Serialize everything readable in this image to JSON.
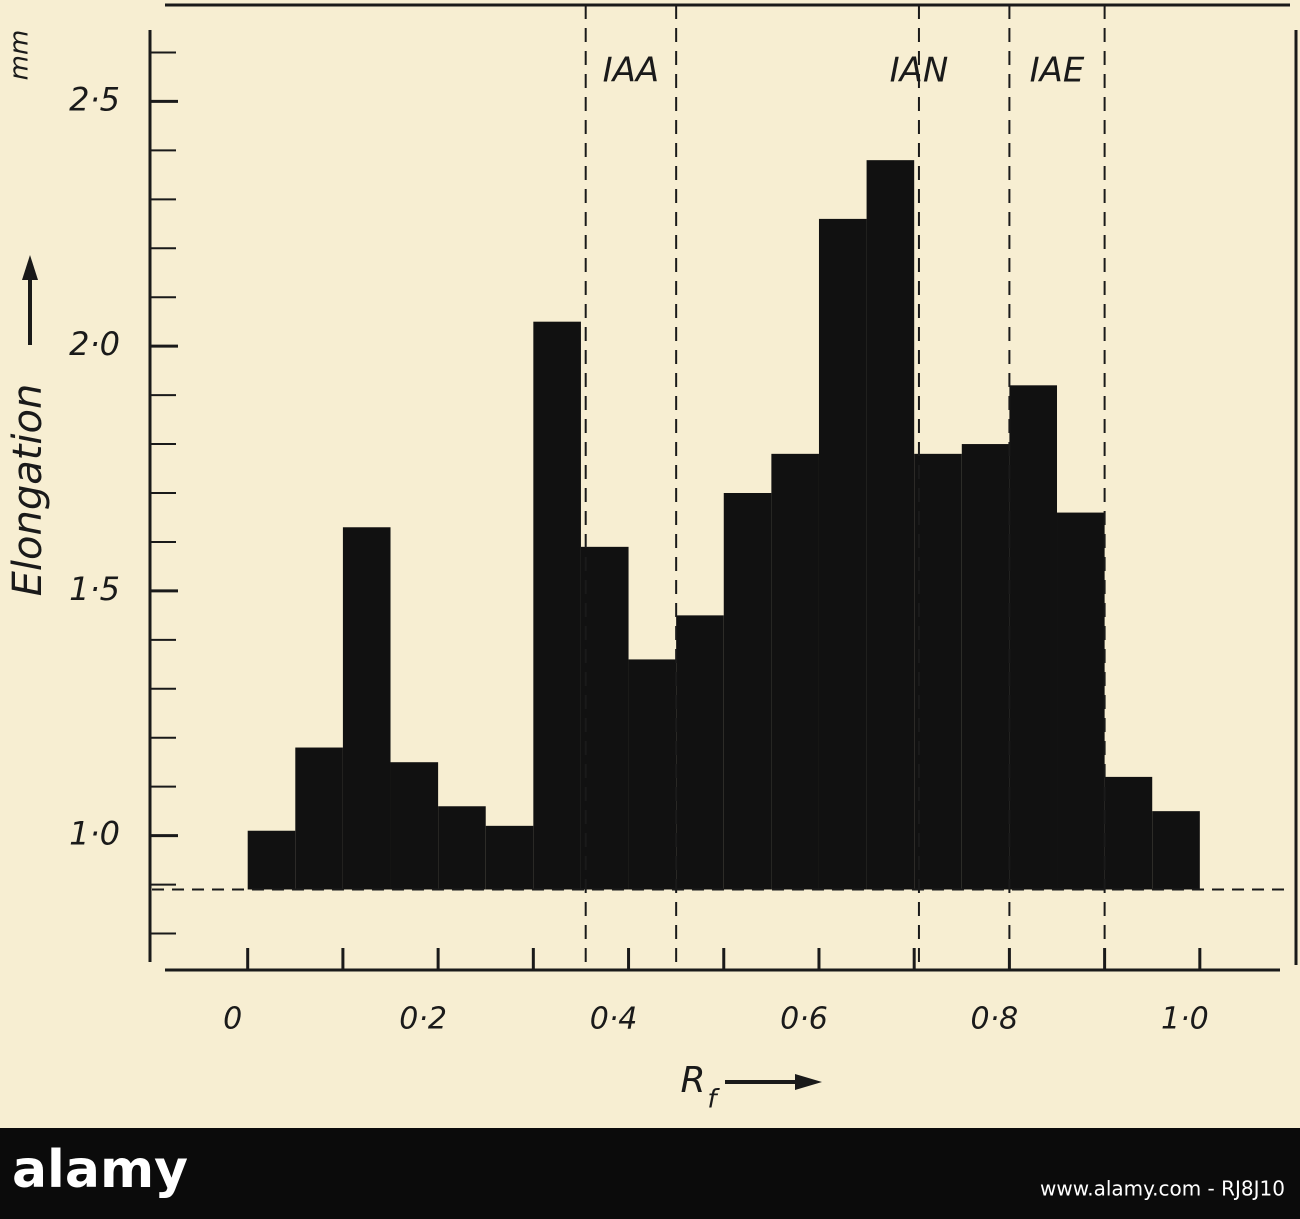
{
  "chart_data": {
    "type": "histogram",
    "y_label": "Elongation",
    "y_unit": "mm",
    "x_label": "R",
    "x_label_subscript": "f",
    "bins": [
      0,
      0.05,
      0.1,
      0.15,
      0.2,
      0.25,
      0.3,
      0.35,
      0.4,
      0.45,
      0.5,
      0.55,
      0.6,
      0.65,
      0.7,
      0.75,
      0.8,
      0.85,
      0.9,
      0.95,
      1.0
    ],
    "values": [
      1.01,
      1.18,
      1.63,
      1.15,
      1.06,
      1.02,
      2.05,
      1.59,
      1.36,
      1.45,
      1.7,
      1.78,
      2.26,
      2.38,
      1.78,
      1.8,
      1.92,
      1.66,
      1.12,
      1.05
    ],
    "color": "#111111",
    "baseline": 0.89,
    "xlim": [
      -0.09,
      1.08
    ],
    "ylim": [
      0.75,
      2.65
    ],
    "xticks": [
      0,
      {
        "value": 0.2,
        "label": "0·2"
      },
      {
        "value": 0.4,
        "label": "0·4"
      },
      {
        "value": 0.6,
        "label": "0·6"
      },
      {
        "value": 0.8,
        "label": "0·8"
      },
      {
        "value": 1.0,
        "label": "1·0"
      }
    ],
    "xminorticks": [
      0.1,
      0.3,
      0.5,
      0.7,
      0.9
    ],
    "yticks": [
      {
        "value": 1.0,
        "label": "1·0"
      },
      {
        "value": 1.5,
        "label": "1·5"
      },
      {
        "value": 2.0,
        "label": "2·0"
      },
      {
        "value": 2.5,
        "label": "2·5"
      }
    ],
    "yminorticks": [
      0.8,
      0.9,
      1.1,
      1.2,
      1.3,
      1.4,
      1.6,
      1.7,
      1.8,
      1.9,
      2.1,
      2.2,
      2.3,
      2.4,
      2.6
    ],
    "markers": [
      {
        "label": "IAA",
        "lines": [
          0.355,
          0.45
        ]
      },
      {
        "label": "IAN",
        "lines": [
          0.705
        ]
      },
      {
        "label": "IAE",
        "lines": [
          0.8,
          0.9
        ]
      }
    ]
  },
  "watermark": {
    "brand": "alamy",
    "url": "www.alamy.com - RJ8J10"
  }
}
